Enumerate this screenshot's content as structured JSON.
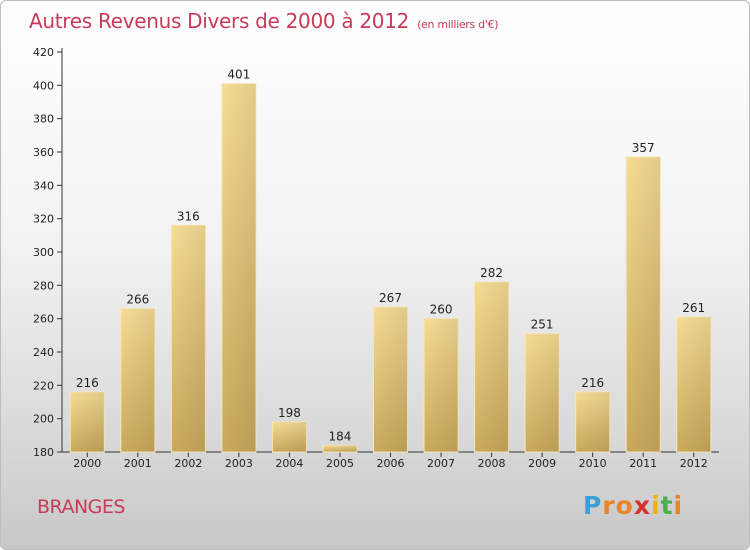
{
  "header": {
    "title": "Autres Revenus Divers de 2000 à 2012",
    "subtitle": "(en milliers d'€)"
  },
  "footer": {
    "place": "BRANGES",
    "logo_letters": [
      "P",
      "r",
      "o",
      "x",
      "i",
      "t",
      "i"
    ],
    "logo_colors": [
      "#3aa0d8",
      "#e8842a",
      "#e8842a",
      "#d9302c",
      "#f0b400",
      "#4cae4c",
      "#e8842a"
    ]
  },
  "chart_data": {
    "type": "bar",
    "title": "Autres Revenus Divers de 2000 à 2012",
    "subtitle": "(en milliers d'€)",
    "categories": [
      "2000",
      "2001",
      "2002",
      "2003",
      "2004",
      "2005",
      "2006",
      "2007",
      "2008",
      "2009",
      "2010",
      "2011",
      "2012"
    ],
    "values": [
      216,
      266,
      316,
      401,
      198,
      184,
      267,
      260,
      282,
      251,
      216,
      357,
      261
    ],
    "ylim": [
      180,
      420
    ],
    "yticks": [
      180,
      200,
      220,
      240,
      260,
      280,
      300,
      320,
      340,
      360,
      380,
      400,
      420
    ],
    "xlabel": "",
    "ylabel": "",
    "grid": false,
    "bar_color": "#e3c57a",
    "data_labels": true
  }
}
